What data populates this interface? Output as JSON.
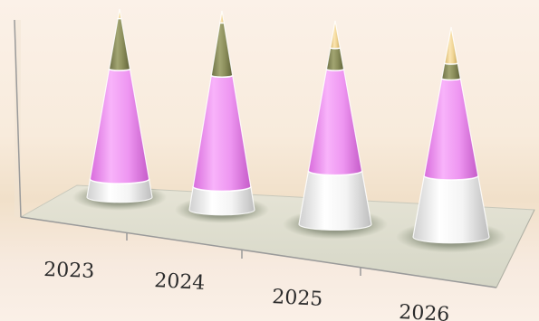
{
  "chart_data": {
    "type": "bar",
    "shape": "3d-cone",
    "stacked": true,
    "categories": [
      "2023",
      "2024",
      "2025",
      "2026"
    ],
    "series": [
      {
        "values": [
          4,
          4,
          10,
          12
        ]
      },
      {
        "values": [
          24,
          19,
          19,
          19
        ]
      },
      {
        "values": [
          11,
          9,
          4,
          3
        ]
      },
      {
        "values": [
          2,
          2,
          5,
          7
        ]
      }
    ],
    "title": "",
    "xlabel": "",
    "ylabel": "",
    "legend": "none",
    "grid": false,
    "colors": [
      "#f2f2f2",
      "#ec8ff0",
      "#8c8f5c",
      "#f0d595"
    ]
  }
}
